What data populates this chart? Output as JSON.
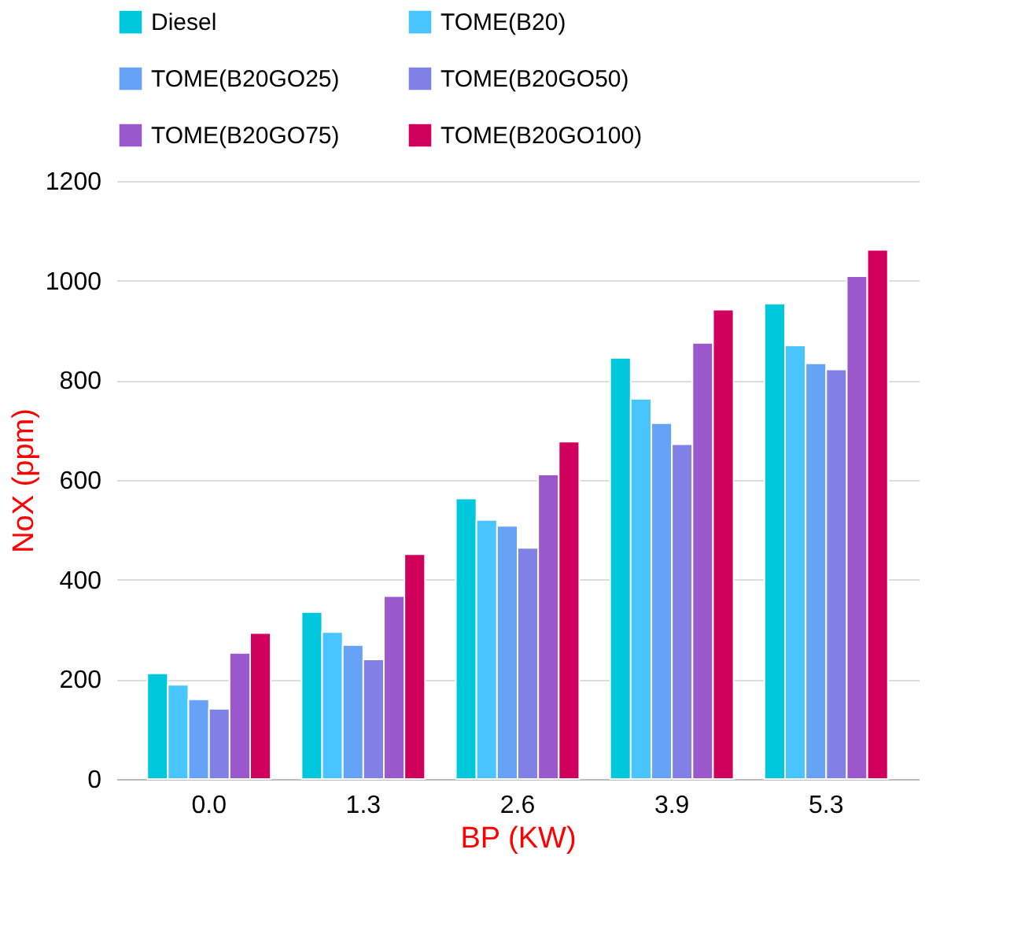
{
  "chart_data": {
    "type": "bar",
    "xlabel": "BP (KW)",
    "ylabel": "NoX (ppm)",
    "categories": [
      "0.0",
      "1.3",
      "2.6",
      "3.9",
      "5.3"
    ],
    "series": [
      {
        "name": "Diesel",
        "color": "#00c8dc",
        "values": [
          212,
          335,
          563,
          845,
          954
        ]
      },
      {
        "name": "TOME(B20)",
        "color": "#48c4ff",
        "values": [
          189,
          295,
          520,
          763,
          870
        ]
      },
      {
        "name": "TOME(B20GO25)",
        "color": "#66a3f7",
        "values": [
          160,
          269,
          508,
          714,
          834
        ]
      },
      {
        "name": "TOME(B20GO50)",
        "color": "#8080e6",
        "values": [
          141,
          240,
          464,
          672,
          822
        ]
      },
      {
        "name": "TOME(B20GO75)",
        "color": "#9a58cc",
        "values": [
          253,
          367,
          611,
          875,
          1009
        ]
      },
      {
        "name": "TOME(B20GO100)",
        "color": "#d0005c",
        "values": [
          293,
          451,
          677,
          942,
          1062
        ]
      }
    ],
    "ylim": [
      0,
      1200
    ],
    "yticks": [
      0,
      200,
      400,
      600,
      800,
      1000,
      1200
    ],
    "grid": "y",
    "legend": "top"
  }
}
